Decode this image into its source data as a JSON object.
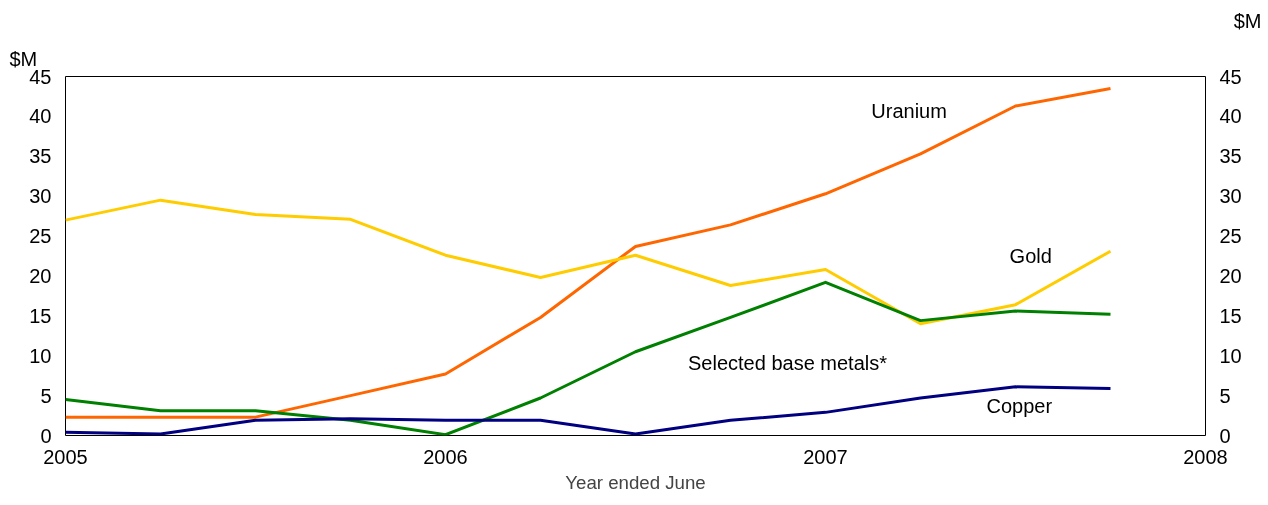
{
  "chart_data": {
    "type": "line",
    "xlabel": "Year ended June",
    "ylabel": "$M",
    "y2label": "$M",
    "x": [
      2005,
      2005.25,
      2005.5,
      2005.75,
      2006,
      2006.25,
      2006.5,
      2006.75,
      2007,
      2007.25,
      2007.5,
      2007.75
    ],
    "series": [
      {
        "name": "Uranium",
        "color": "#ff6600",
        "values": [
          2.3,
          2.3,
          2.3,
          5,
          7.7,
          14.8,
          23.7,
          26.4,
          30.3,
          35.3,
          41.3,
          43.5
        ]
      },
      {
        "name": "Gold",
        "color": "#ffcc00",
        "values": [
          27,
          29.5,
          27.7,
          27.1,
          22.6,
          19.8,
          22.6,
          18.8,
          20.8,
          14,
          16.4,
          23.1
        ]
      },
      {
        "name": "Selected base metals*",
        "color": "#008000",
        "values": [
          4.5,
          3.1,
          3.1,
          1.9,
          0.1,
          4.7,
          10.5,
          14.8,
          19.2,
          14.4,
          15.6,
          15.2
        ]
      },
      {
        "name": "Copper",
        "color": "#000080",
        "values": [
          0.4,
          0.2,
          1.9,
          2.1,
          1.9,
          1.9,
          0.2,
          1.9,
          2.9,
          4.7,
          6.1,
          5.9
        ]
      }
    ],
    "xlim": [
      2005,
      2008
    ],
    "xticks": [
      2005,
      2006,
      2007,
      2008
    ],
    "ylim": [
      0,
      45
    ],
    "yticks": [
      0,
      5,
      10,
      15,
      20,
      25,
      30,
      35,
      40,
      45
    ],
    "y2lim": [
      0,
      45
    ],
    "y2ticks": [
      0,
      5,
      10,
      15,
      20,
      25,
      30,
      35,
      40,
      45
    ],
    "grid": false,
    "legend": false,
    "marker": "none",
    "line_style": "solid"
  }
}
